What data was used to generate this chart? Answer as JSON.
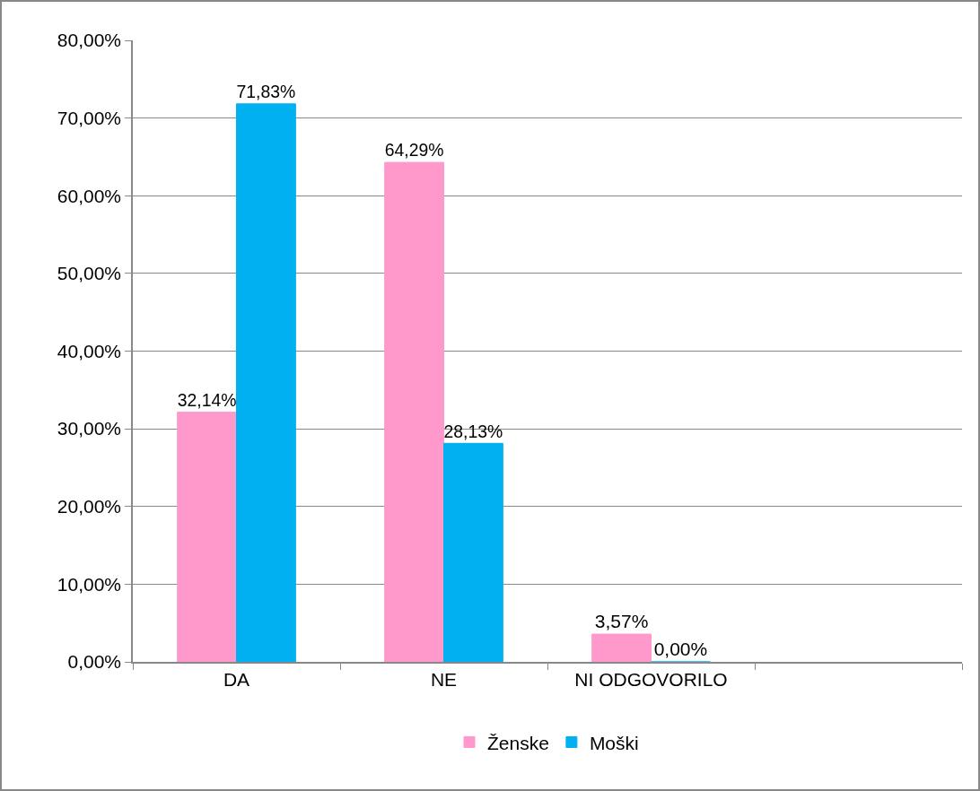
{
  "chart_data": {
    "type": "bar",
    "categories": [
      "DA",
      "NE",
      "NI ODGOVORILO",
      null
    ],
    "series": [
      {
        "name": "Ženske",
        "color": "#ff99cc",
        "values": [
          32.14,
          64.29,
          3.57,
          null
        ],
        "value_labels": [
          "32,14%",
          "64,29%",
          "3,57%",
          null
        ]
      },
      {
        "name": "Moški",
        "color": "#00b0f0",
        "values": [
          71.83,
          28.13,
          0,
          null
        ],
        "value_labels": [
          "71,83%",
          "28,13%",
          "0,00%",
          null
        ]
      }
    ],
    "ylim": [
      0,
      80
    ],
    "yticks": [
      {
        "value": 0,
        "label": "0,00%"
      },
      {
        "value": 10,
        "label": "10,00%"
      },
      {
        "value": 20,
        "label": "20,00%"
      },
      {
        "value": 30,
        "label": "30,00%"
      },
      {
        "value": 40,
        "label": "40,00%"
      },
      {
        "value": 50,
        "label": "50,00%"
      },
      {
        "value": 60,
        "label": "60,00%"
      },
      {
        "value": 70,
        "label": "70,00%"
      },
      {
        "value": 80,
        "label": "80,00%"
      }
    ],
    "grid": "y",
    "legend": "bottom"
  }
}
